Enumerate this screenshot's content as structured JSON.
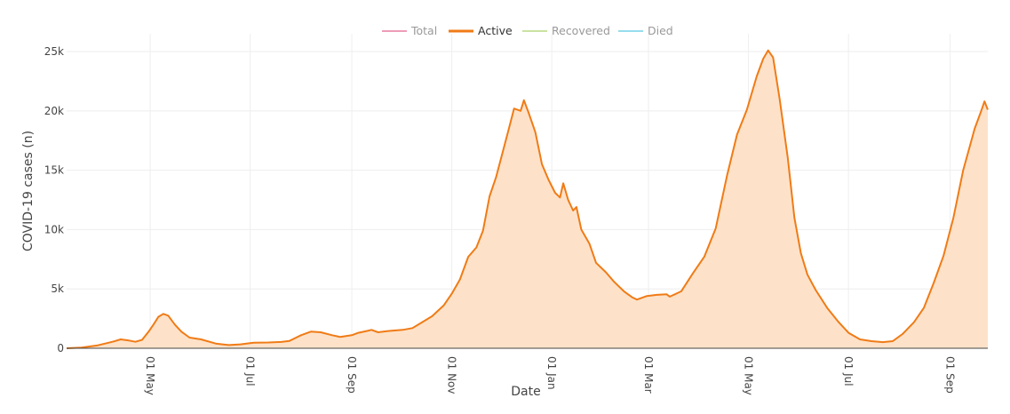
{
  "chart_data": {
    "type": "area",
    "title": "",
    "xlabel": "Date",
    "ylabel": "COVID-19 cases (n)",
    "x_range": [
      "2020-03-11",
      "2021-09-24"
    ],
    "ylim": [
      0,
      26500
    ],
    "grid": true,
    "legend_position": "top-center",
    "legend": [
      {
        "name": "Total",
        "color": "#e8739b",
        "active": false
      },
      {
        "name": "Active",
        "color": "#f07b16",
        "active": true
      },
      {
        "name": "Recovered",
        "color": "#b4d67a",
        "active": false
      },
      {
        "name": "Died",
        "color": "#6ccfe8",
        "active": false
      }
    ],
    "x_ticks": [
      {
        "date": "2020-05-01",
        "label": "01 May"
      },
      {
        "date": "2020-07-01",
        "label": "01 Jul"
      },
      {
        "date": "2020-09-01",
        "label": "01 Sep"
      },
      {
        "date": "2020-11-01",
        "label": "01 Nov"
      },
      {
        "date": "2021-01-01",
        "label": "01 Jan"
      },
      {
        "date": "2021-03-01",
        "label": "01 Mar"
      },
      {
        "date": "2021-05-01",
        "label": "01 May"
      },
      {
        "date": "2021-07-01",
        "label": "01 Jul"
      },
      {
        "date": "2021-09-01",
        "label": "01 Sep"
      }
    ],
    "y_ticks": [
      {
        "value": 0,
        "label": "0"
      },
      {
        "value": 5000,
        "label": "5k"
      },
      {
        "value": 10000,
        "label": "10k"
      },
      {
        "value": 15000,
        "label": "15k"
      },
      {
        "value": 20000,
        "label": "20k"
      },
      {
        "value": 25000,
        "label": "25k"
      }
    ],
    "series": [
      {
        "name": "Active",
        "color": "#f07b16",
        "fill": "#fde2c9",
        "points": [
          [
            "2020-03-11",
            0
          ],
          [
            "2020-03-20",
            50
          ],
          [
            "2020-03-30",
            250
          ],
          [
            "2020-04-08",
            550
          ],
          [
            "2020-04-13",
            750
          ],
          [
            "2020-04-18",
            650
          ],
          [
            "2020-04-22",
            550
          ],
          [
            "2020-04-26",
            700
          ],
          [
            "2020-04-30",
            1400
          ],
          [
            "2020-05-03",
            2000
          ],
          [
            "2020-05-06",
            2650
          ],
          [
            "2020-05-09",
            2900
          ],
          [
            "2020-05-12",
            2750
          ],
          [
            "2020-05-16",
            2000
          ],
          [
            "2020-05-20",
            1400
          ],
          [
            "2020-05-25",
            900
          ],
          [
            "2020-06-01",
            750
          ],
          [
            "2020-06-10",
            400
          ],
          [
            "2020-06-18",
            270
          ],
          [
            "2020-06-25",
            330
          ],
          [
            "2020-07-03",
            470
          ],
          [
            "2020-07-12",
            490
          ],
          [
            "2020-07-20",
            530
          ],
          [
            "2020-07-25",
            620
          ],
          [
            "2020-08-01",
            1100
          ],
          [
            "2020-08-07",
            1400
          ],
          [
            "2020-08-13",
            1350
          ],
          [
            "2020-08-20",
            1100
          ],
          [
            "2020-08-25",
            950
          ],
          [
            "2020-09-01",
            1100
          ],
          [
            "2020-09-05",
            1300
          ],
          [
            "2020-09-10",
            1450
          ],
          [
            "2020-09-13",
            1550
          ],
          [
            "2020-09-17",
            1350
          ],
          [
            "2020-09-23",
            1450
          ],
          [
            "2020-09-27",
            1500
          ],
          [
            "2020-10-02",
            1550
          ],
          [
            "2020-10-08",
            1700
          ],
          [
            "2020-10-14",
            2200
          ],
          [
            "2020-10-20",
            2700
          ],
          [
            "2020-10-27",
            3600
          ],
          [
            "2020-11-01",
            4600
          ],
          [
            "2020-11-06",
            5800
          ],
          [
            "2020-11-11",
            7700
          ],
          [
            "2020-11-16",
            8500
          ],
          [
            "2020-11-20",
            9900
          ],
          [
            "2020-11-24",
            12800
          ],
          [
            "2020-11-28",
            14400
          ],
          [
            "2020-12-02",
            16500
          ],
          [
            "2020-12-06",
            18600
          ],
          [
            "2020-12-09",
            20200
          ],
          [
            "2020-12-13",
            20000
          ],
          [
            "2020-12-15",
            20900
          ],
          [
            "2020-12-18",
            19800
          ],
          [
            "2020-12-22",
            18200
          ],
          [
            "2020-12-26",
            15500
          ],
          [
            "2020-12-30",
            14200
          ],
          [
            "2021-01-03",
            13100
          ],
          [
            "2021-01-06",
            12700
          ],
          [
            "2021-01-08",
            13900
          ],
          [
            "2021-01-11",
            12500
          ],
          [
            "2021-01-14",
            11600
          ],
          [
            "2021-01-16",
            11900
          ],
          [
            "2021-01-19",
            10000
          ],
          [
            "2021-01-24",
            8800
          ],
          [
            "2021-01-28",
            7200
          ],
          [
            "2021-02-03",
            6400
          ],
          [
            "2021-02-08",
            5600
          ],
          [
            "2021-02-14",
            4800
          ],
          [
            "2021-02-19",
            4300
          ],
          [
            "2021-02-22",
            4100
          ],
          [
            "2021-02-28",
            4400
          ],
          [
            "2021-03-06",
            4500
          ],
          [
            "2021-03-12",
            4550
          ],
          [
            "2021-03-14",
            4350
          ],
          [
            "2021-03-21",
            4800
          ],
          [
            "2021-03-28",
            6300
          ],
          [
            "2021-04-04",
            7700
          ],
          [
            "2021-04-11",
            10100
          ],
          [
            "2021-04-18",
            14600
          ],
          [
            "2021-04-24",
            18000
          ],
          [
            "2021-04-30",
            20100
          ],
          [
            "2021-05-06",
            22900
          ],
          [
            "2021-05-10",
            24400
          ],
          [
            "2021-05-13",
            25100
          ],
          [
            "2021-05-16",
            24500
          ],
          [
            "2021-05-20",
            21000
          ],
          [
            "2021-05-25",
            16000
          ],
          [
            "2021-05-29",
            11000
          ],
          [
            "2021-06-02",
            8000
          ],
          [
            "2021-06-06",
            6200
          ],
          [
            "2021-06-11",
            4900
          ],
          [
            "2021-06-18",
            3400
          ],
          [
            "2021-06-25",
            2200
          ],
          [
            "2021-07-01",
            1300
          ],
          [
            "2021-07-08",
            750
          ],
          [
            "2021-07-15",
            600
          ],
          [
            "2021-07-22",
            520
          ],
          [
            "2021-07-28",
            600
          ],
          [
            "2021-08-03",
            1200
          ],
          [
            "2021-08-10",
            2200
          ],
          [
            "2021-08-16",
            3400
          ],
          [
            "2021-08-22",
            5500
          ],
          [
            "2021-08-28",
            7800
          ],
          [
            "2021-09-03",
            11000
          ],
          [
            "2021-09-09",
            15000
          ],
          [
            "2021-09-13",
            17000
          ],
          [
            "2021-09-16",
            18500
          ],
          [
            "2021-09-20",
            20000
          ],
          [
            "2021-09-22",
            20800
          ],
          [
            "2021-09-24",
            20100
          ]
        ]
      }
    ]
  }
}
